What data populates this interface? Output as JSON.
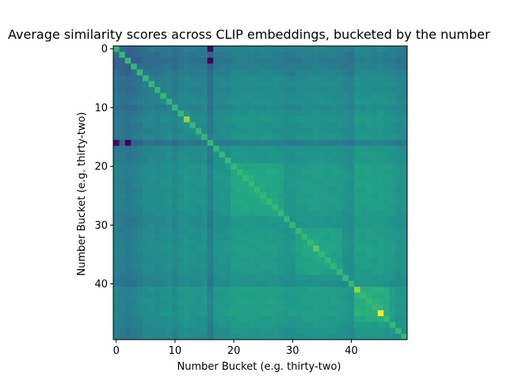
{
  "chart_data": {
    "type": "heatmap",
    "title": "Average similarity scores across CLIP embeddings, bucketed by the number",
    "xlabel": "Number Bucket (e.g. thirty-two)",
    "ylabel": "Number Bucket (e.g. thirty-two)",
    "n": 50,
    "xlim": [
      0,
      49
    ],
    "ylim": [
      0,
      49
    ],
    "y_inverted": true,
    "x_ticks": [
      0,
      10,
      20,
      30,
      40
    ],
    "y_ticks": [
      0,
      10,
      20,
      30,
      40
    ],
    "colormap": "viridis",
    "color_scale": "relative",
    "grid": false,
    "legend": "none",
    "diagonal_value": 1.0,
    "row_col_offsets": [
      -0.23,
      -0.3,
      -0.36,
      -0.3,
      -0.22,
      -0.13,
      -0.1,
      -0.14,
      -0.08,
      -0.04,
      -0.14,
      -0.04,
      0.02,
      -0.02,
      -0.04,
      0.0,
      -0.3,
      0.0,
      0.02,
      0.02,
      0.1,
      0.12,
      0.12,
      0.12,
      0.1,
      0.11,
      0.12,
      0.1,
      0.07,
      0.02,
      0.02,
      0.06,
      0.08,
      0.1,
      0.12,
      0.1,
      0.08,
      0.08,
      0.05,
      0.0,
      -0.05,
      0.16,
      0.14,
      0.16,
      0.14,
      0.16,
      0.1,
      0.08,
      0.0,
      0.0
    ],
    "blocks": [
      {
        "start": 20,
        "end": 28,
        "bonus": 0.1
      },
      {
        "start": 31,
        "end": 38,
        "bonus": 0.1
      },
      {
        "start": 41,
        "end": 46,
        "bonus": 0.12
      }
    ],
    "highlight_cells": [
      {
        "row": 12,
        "col": 12,
        "value": 1.25
      },
      {
        "row": 41,
        "col": 41,
        "value": 1.25
      },
      {
        "row": 45,
        "col": 45,
        "value": 1.35
      },
      {
        "row": 34,
        "col": 34,
        "value": 1.15
      }
    ],
    "notes_pairs": [
      {
        "row": 0,
        "col": 16,
        "value": -0.65
      },
      {
        "row": 16,
        "col": 0,
        "value": -0.65
      },
      {
        "row": 16,
        "col": 2,
        "value": -0.7
      },
      {
        "row": 2,
        "col": 16,
        "value": -0.7
      }
    ]
  }
}
